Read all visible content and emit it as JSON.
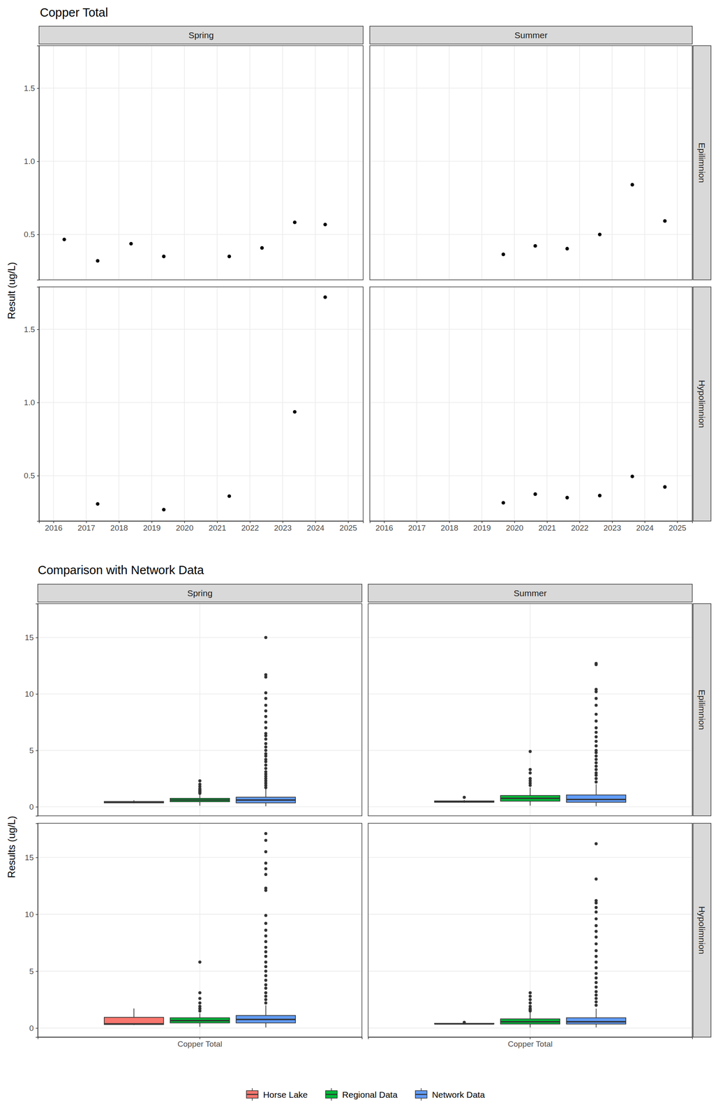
{
  "chart_data": [
    {
      "type": "scatter",
      "title": "Copper Total",
      "y_label": "Result (ug/L)",
      "columns": [
        "Spring",
        "Summer"
      ],
      "rows": [
        "Epilimnion",
        "Hypolimnion"
      ],
      "xlim": [
        2015.56,
        2025.46
      ],
      "xticks": [
        2016,
        2017,
        2018,
        2019,
        2020,
        2021,
        2022,
        2023,
        2024,
        2025
      ],
      "ylim": [
        0.19,
        1.79
      ],
      "yticks": [
        0.5,
        {
          "value": 1,
          "label": "1.0"
        },
        1.5
      ],
      "grid": true,
      "marker": "circle",
      "color": "#000000",
      "panels": [
        {
          "x": [
            2016.33,
            2017.35,
            2018.37,
            2019.37,
            2021.37,
            2022.37,
            2023.37,
            2024.3
          ],
          "values": [
            0.466,
            0.32,
            0.437,
            0.35,
            0.35,
            0.408,
            0.583,
            0.568
          ]
        },
        {
          "x": [
            2019.66,
            2020.64,
            2021.62,
            2022.62,
            2023.62,
            2024.62
          ],
          "values": [
            0.364,
            0.422,
            0.403,
            0.5,
            0.84,
            0.592
          ]
        },
        {
          "x": [
            2017.35,
            2019.37,
            2021.37,
            2023.37,
            2024.3
          ],
          "values": [
            0.307,
            0.268,
            0.36,
            0.936,
            1.72
          ]
        },
        {
          "x": [
            2019.66,
            2020.64,
            2021.62,
            2022.62,
            2023.62,
            2024.62
          ],
          "values": [
            0.315,
            0.374,
            0.35,
            0.364,
            0.495,
            0.423
          ]
        }
      ]
    },
    {
      "type": "box",
      "title": "Comparison with Network Data",
      "y_label": "Results (ug/L)",
      "columns": [
        "Spring",
        "Summer"
      ],
      "rows": [
        "Epilimnion",
        "Hypolimnion"
      ],
      "categories": [
        "Copper Total"
      ],
      "series": [
        {
          "name": "Horse Lake",
          "color": "#F8766D"
        },
        {
          "name": "Regional Data",
          "color": "#00BA38"
        },
        {
          "name": "Network Data",
          "color": "#619CFF"
        }
      ],
      "ylim": [
        -0.8,
        18.0
      ],
      "yticks": [
        0,
        5,
        10,
        15
      ],
      "grid": true,
      "legend": "bottom",
      "panels": [
        {
          "boxes": [
            {
              "low": 0.32,
              "q1": 0.35,
              "median": 0.42,
              "q3": 0.47,
              "high": 0.58,
              "outliers": []
            },
            {
              "low": 0.1,
              "q1": 0.45,
              "median": 0.6,
              "q3": 0.75,
              "high": 1.1,
              "outliers": [
                1.2,
                1.3,
                1.4,
                1.5,
                1.6,
                1.8,
                2.0,
                2.3
              ]
            },
            {
              "low": 0.05,
              "q1": 0.35,
              "median": 0.6,
              "q3": 0.85,
              "high": 1.6,
              "outliers": [
                1.7,
                1.9,
                2.1,
                2.3,
                2.5,
                2.7,
                2.9,
                3.1,
                3.4,
                3.7,
                4.0,
                4.2,
                4.5,
                4.7,
                5.0,
                5.3,
                5.6,
                6.0,
                6.3,
                6.5,
                7.0,
                7.5,
                8.0,
                8.5,
                9.0,
                9.6,
                10.1,
                11.5,
                11.7,
                15.0
              ]
            }
          ]
        },
        {
          "boxes": [
            {
              "low": 0.36,
              "q1": 0.4,
              "median": 0.46,
              "q3": 0.52,
              "high": 0.6,
              "outliers": [
                0.84
              ]
            },
            {
              "low": 0.1,
              "q1": 0.5,
              "median": 0.75,
              "q3": 1.0,
              "high": 1.7,
              "outliers": [
                1.9,
                2.1,
                2.3,
                2.5,
                3.0,
                3.3,
                4.9
              ]
            },
            {
              "low": 0.05,
              "q1": 0.4,
              "median": 0.65,
              "q3": 1.05,
              "high": 2.0,
              "outliers": [
                2.2,
                2.5,
                2.8,
                3.0,
                3.3,
                3.6,
                3.9,
                4.2,
                4.5,
                4.8,
                5.0,
                5.4,
                5.8,
                6.2,
                6.6,
                7.0,
                7.6,
                8.2,
                9.0,
                9.6,
                10.2,
                10.4,
                12.6,
                12.7
              ]
            }
          ]
        },
        {
          "boxes": [
            {
              "low": 0.27,
              "q1": 0.31,
              "median": 0.36,
              "q3": 0.94,
              "high": 1.72,
              "outliers": []
            },
            {
              "low": 0.1,
              "q1": 0.45,
              "median": 0.65,
              "q3": 0.9,
              "high": 1.3,
              "outliers": [
                1.5,
                1.7,
                1.9,
                2.2,
                2.6,
                3.1,
                5.8
              ]
            },
            {
              "low": 0.05,
              "q1": 0.45,
              "median": 0.75,
              "q3": 1.1,
              "high": 2.0,
              "outliers": [
                2.2,
                2.5,
                2.8,
                3.1,
                3.5,
                3.8,
                4.2,
                4.6,
                5.0,
                5.4,
                5.8,
                6.3,
                6.7,
                7.1,
                7.6,
                8.1,
                8.6,
                9.2,
                9.9,
                12.1,
                12.3,
                13.5,
                14.0,
                14.5,
                15.5,
                16.5,
                17.1
              ]
            }
          ]
        },
        {
          "boxes": [
            {
              "low": 0.31,
              "q1": 0.35,
              "median": 0.37,
              "q3": 0.41,
              "high": 0.42,
              "outliers": [
                0.495
              ]
            },
            {
              "low": 0.05,
              "q1": 0.35,
              "median": 0.55,
              "q3": 0.8,
              "high": 1.4,
              "outliers": [
                1.5,
                1.6,
                1.7,
                1.9,
                2.2,
                2.5,
                2.8,
                3.1
              ]
            },
            {
              "low": 0.05,
              "q1": 0.35,
              "median": 0.55,
              "q3": 0.9,
              "high": 1.7,
              "outliers": [
                2.0,
                2.3,
                2.6,
                2.9,
                3.2,
                3.6,
                4.0,
                4.4,
                4.8,
                5.3,
                5.8,
                6.3,
                6.8,
                7.4,
                8.0,
                8.5,
                9.0,
                9.6,
                10.2,
                10.6,
                11.0,
                11.2,
                13.1,
                16.2
              ]
            }
          ]
        }
      ]
    }
  ]
}
